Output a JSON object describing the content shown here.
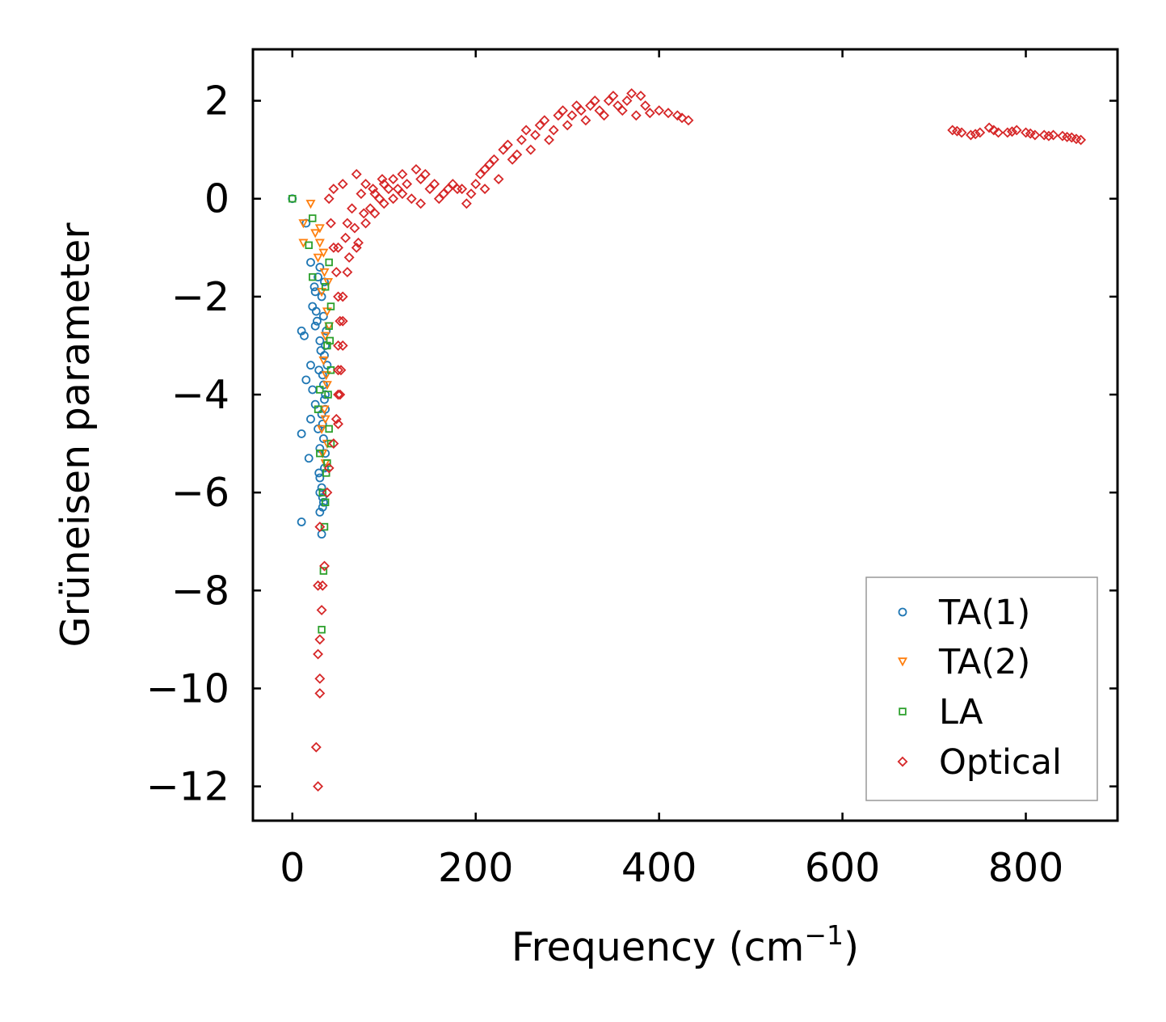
{
  "chart_data": {
    "type": "scatter",
    "title": "",
    "xlabel": "Frequency (cm",
    "xlabel_sup": "−1",
    "xlabel_end": ")",
    "ylabel": "Grüneisen parameter",
    "xlim": [
      -43,
      900
    ],
    "ylim": [
      -12.7,
      3.05
    ],
    "xticks": [
      0,
      200,
      400,
      600,
      800
    ],
    "xtick_labels": [
      "0",
      "200",
      "400",
      "600",
      "800"
    ],
    "yticks": [
      2,
      0,
      -2,
      -4,
      -6,
      -8,
      -10,
      -12
    ],
    "ytick_labels": [
      "2",
      "0",
      "−2",
      "−4",
      "−6",
      "−8",
      "−10",
      "−12"
    ],
    "grid": false,
    "legend_position": "bottom-right",
    "series": [
      {
        "name": "TA(1)",
        "marker": "circle",
        "color": "#1f77b4",
        "points": [
          [
            0,
            0
          ],
          [
            15,
            -0.5
          ],
          [
            20,
            -1.3
          ],
          [
            25,
            -1.9
          ],
          [
            22,
            -2.2
          ],
          [
            25,
            -2.6
          ],
          [
            10,
            -2.7
          ],
          [
            13,
            -2.8
          ],
          [
            20,
            -3.4
          ],
          [
            15,
            -3.7
          ],
          [
            22,
            -3.9
          ],
          [
            25,
            -4.2
          ],
          [
            20,
            -4.5
          ],
          [
            10,
            -4.8
          ],
          [
            18,
            -5.3
          ],
          [
            30,
            -5.7
          ],
          [
            10,
            -6.6
          ],
          [
            30,
            -6.0
          ],
          [
            33,
            -6.3
          ],
          [
            32,
            -6.85
          ],
          [
            30,
            -1.4
          ],
          [
            35,
            -1.7
          ],
          [
            32,
            -2.0
          ],
          [
            34,
            -2.4
          ],
          [
            30,
            -2.9
          ],
          [
            35,
            -3.2
          ],
          [
            33,
            -3.6
          ],
          [
            36,
            -4.0
          ],
          [
            32,
            -4.4
          ],
          [
            34,
            -4.9
          ],
          [
            30,
            -5.1
          ],
          [
            35,
            -5.5
          ],
          [
            33,
            -6.1
          ],
          [
            28,
            -1.6
          ],
          [
            26,
            -2.3
          ],
          [
            36,
            -3.0
          ],
          [
            34,
            -3.8
          ],
          [
            28,
            -4.7
          ],
          [
            32,
            -5.9
          ],
          [
            37,
            -2.7
          ],
          [
            38,
            -3.4
          ],
          [
            36,
            -4.3
          ],
          [
            30,
            -6.4
          ],
          [
            24,
            -1.8
          ],
          [
            27,
            -2.5
          ],
          [
            31,
            -3.1
          ],
          [
            29,
            -3.5
          ],
          [
            35,
            -4.1
          ],
          [
            33,
            -4.6
          ],
          [
            36,
            -5.2
          ],
          [
            29,
            -5.6
          ],
          [
            34,
            -6.2
          ]
        ]
      },
      {
        "name": "TA(2)",
        "marker": "triangle-down",
        "color": "#ff7f0e",
        "points": [
          [
            20,
            -0.1
          ],
          [
            12,
            -0.5
          ],
          [
            25,
            -0.7
          ],
          [
            12,
            -0.9
          ],
          [
            30,
            -0.9
          ],
          [
            28,
            -1.2
          ],
          [
            35,
            -1.5
          ],
          [
            32,
            -1.9
          ],
          [
            38,
            -2.3
          ],
          [
            36,
            -2.8
          ],
          [
            34,
            -3.3
          ],
          [
            38,
            -3.8
          ],
          [
            35,
            -4.3
          ],
          [
            32,
            -4.7
          ],
          [
            38,
            -5.0
          ],
          [
            36,
            -5.4
          ],
          [
            30,
            -0.6
          ],
          [
            34,
            -1.1
          ],
          [
            39,
            -1.7
          ],
          [
            40,
            -2.6
          ],
          [
            37,
            -3.6
          ],
          [
            36,
            -4.5
          ],
          [
            33,
            -5.2
          ]
        ]
      },
      {
        "name": "LA",
        "marker": "square",
        "color": "#2ca02c",
        "points": [
          [
            0,
            0
          ],
          [
            22,
            -0.4
          ],
          [
            18,
            -0.95
          ],
          [
            22,
            -1.6
          ],
          [
            40,
            -1.3
          ],
          [
            36,
            -1.8
          ],
          [
            42,
            -2.2
          ],
          [
            40,
            -2.6
          ],
          [
            38,
            -3.0
          ],
          [
            42,
            -3.5
          ],
          [
            30,
            -3.9
          ],
          [
            28,
            -4.3
          ],
          [
            40,
            -4.7
          ],
          [
            42,
            -5.0
          ],
          [
            38,
            -5.4
          ],
          [
            30,
            -5.2
          ],
          [
            35,
            -6.7
          ],
          [
            34,
            -7.6
          ],
          [
            32,
            -8.8
          ],
          [
            36,
            -6.2
          ],
          [
            41,
            -2.9
          ],
          [
            39,
            -4.0
          ],
          [
            37,
            -5.6
          ],
          [
            33,
            -6.0
          ]
        ]
      },
      {
        "name": "Optical",
        "marker": "diamond",
        "color": "#d62728",
        "points": [
          [
            28,
            -12.0
          ],
          [
            26,
            -11.2
          ],
          [
            30,
            -10.1
          ],
          [
            30,
            -9.8
          ],
          [
            28,
            -9.3
          ],
          [
            30,
            -9.0
          ],
          [
            32,
            -8.4
          ],
          [
            28,
            -7.9
          ],
          [
            33,
            -7.9
          ],
          [
            35,
            -7.5
          ],
          [
            30,
            -6.7
          ],
          [
            38,
            -6.0
          ],
          [
            40,
            -5.5
          ],
          [
            45,
            -5.0
          ],
          [
            48,
            -4.5
          ],
          [
            50,
            -4.0
          ],
          [
            50,
            -3.5
          ],
          [
            50,
            -3.0
          ],
          [
            52,
            -2.5
          ],
          [
            50,
            -2.0
          ],
          [
            48,
            -1.5
          ],
          [
            45,
            -1.0
          ],
          [
            42,
            -0.5
          ],
          [
            40,
            0.0
          ],
          [
            45,
            0.2
          ],
          [
            55,
            0.3
          ],
          [
            70,
            0.5
          ],
          [
            80,
            0.3
          ],
          [
            90,
            0.1
          ],
          [
            100,
            0.3
          ],
          [
            110,
            0.4
          ],
          [
            120,
            0.5
          ],
          [
            135,
            0.6
          ],
          [
            140,
            0.4
          ],
          [
            150,
            0.2
          ],
          [
            165,
            0.1
          ],
          [
            180,
            0.2
          ],
          [
            195,
            0.1
          ],
          [
            210,
            0.6
          ],
          [
            220,
            0.8
          ],
          [
            230,
            1.0
          ],
          [
            250,
            1.2
          ],
          [
            270,
            1.5
          ],
          [
            290,
            1.7
          ],
          [
            310,
            1.9
          ],
          [
            330,
            2.0
          ],
          [
            350,
            2.1
          ],
          [
            370,
            2.15
          ],
          [
            385,
            1.9
          ],
          [
            400,
            1.8
          ],
          [
            420,
            1.7
          ],
          [
            432,
            1.6
          ],
          [
            60,
            -0.5
          ],
          [
            70,
            -1.0
          ],
          [
            60,
            -1.5
          ],
          [
            55,
            -2.0
          ],
          [
            55,
            -2.5
          ],
          [
            55,
            -3.0
          ],
          [
            53,
            -3.5
          ],
          [
            52,
            -4.0
          ],
          [
            50,
            -4.6
          ],
          [
            80,
            -0.5
          ],
          [
            90,
            -0.3
          ],
          [
            100,
            -0.1
          ],
          [
            110,
            0.0
          ],
          [
            120,
            0.1
          ],
          [
            130,
            0.0
          ],
          [
            140,
            -0.1
          ],
          [
            160,
            0.0
          ],
          [
            175,
            0.3
          ],
          [
            190,
            -0.1
          ],
          [
            200,
            0.3
          ],
          [
            210,
            0.2
          ],
          [
            225,
            0.4
          ],
          [
            240,
            0.8
          ],
          [
            260,
            1.0
          ],
          [
            280,
            1.2
          ],
          [
            300,
            1.5
          ],
          [
            320,
            1.6
          ],
          [
            340,
            1.7
          ],
          [
            360,
            1.8
          ],
          [
            375,
            1.7
          ],
          [
            65,
            -0.2
          ],
          [
            75,
            0.1
          ],
          [
            85,
            -0.2
          ],
          [
            95,
            0.0
          ],
          [
            105,
            0.2
          ],
          [
            50,
            -1.0
          ],
          [
            58,
            -0.8
          ],
          [
            62,
            -1.2
          ],
          [
            68,
            -0.6
          ],
          [
            72,
            -0.9
          ],
          [
            78,
            -0.3
          ],
          [
            88,
            0.2
          ],
          [
            98,
            0.4
          ],
          [
            115,
            0.2
          ],
          [
            125,
            0.3
          ],
          [
            145,
            0.5
          ],
          [
            155,
            0.3
          ],
          [
            170,
            0.2
          ],
          [
            185,
            0.2
          ],
          [
            205,
            0.5
          ],
          [
            215,
            0.7
          ],
          [
            235,
            1.1
          ],
          [
            245,
            0.9
          ],
          [
            255,
            1.4
          ],
          [
            265,
            1.3
          ],
          [
            275,
            1.6
          ],
          [
            285,
            1.4
          ],
          [
            295,
            1.8
          ],
          [
            305,
            1.7
          ],
          [
            315,
            1.8
          ],
          [
            325,
            1.9
          ],
          [
            335,
            1.8
          ],
          [
            345,
            2.0
          ],
          [
            355,
            1.9
          ],
          [
            365,
            2.0
          ],
          [
            380,
            2.1
          ],
          [
            390,
            1.75
          ],
          [
            410,
            1.75
          ],
          [
            425,
            1.65
          ],
          [
            720,
            1.4
          ],
          [
            730,
            1.35
          ],
          [
            740,
            1.3
          ],
          [
            750,
            1.35
          ],
          [
            760,
            1.45
          ],
          [
            770,
            1.35
          ],
          [
            780,
            1.35
          ],
          [
            790,
            1.4
          ],
          [
            800,
            1.35
          ],
          [
            810,
            1.3
          ],
          [
            820,
            1.3
          ],
          [
            830,
            1.3
          ],
          [
            840,
            1.28
          ],
          [
            850,
            1.25
          ],
          [
            860,
            1.2
          ],
          [
            725,
            1.38
          ],
          [
            745,
            1.32
          ],
          [
            765,
            1.4
          ],
          [
            785,
            1.37
          ],
          [
            805,
            1.33
          ],
          [
            825,
            1.28
          ],
          [
            845,
            1.26
          ],
          [
            855,
            1.22
          ]
        ]
      }
    ]
  }
}
